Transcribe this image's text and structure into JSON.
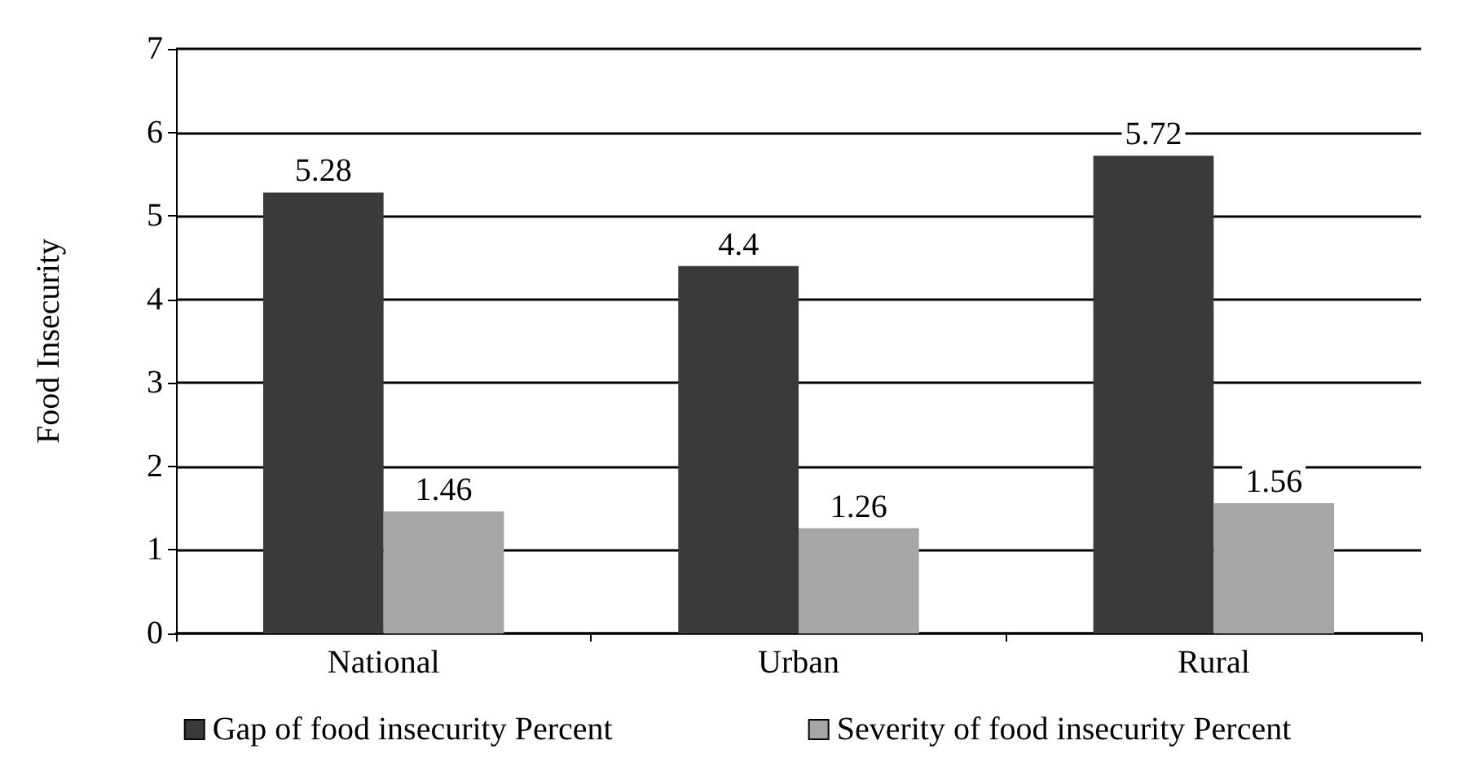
{
  "chart_data": {
    "type": "bar",
    "ylabel": "Food Insecurity",
    "categories": [
      "National",
      "Urban",
      "Rural"
    ],
    "series": [
      {
        "name": "Gap of food insecurity Percent",
        "color": "#3a3a3a",
        "values": [
          5.28,
          4.4,
          5.72
        ]
      },
      {
        "name": "Severity of food insecurity Percent",
        "color": "#a6a6a8",
        "values": [
          1.46,
          1.26,
          1.56
        ]
      }
    ],
    "ylim": [
      0,
      7
    ],
    "yticks": [
      0,
      1,
      2,
      3,
      4,
      5,
      6,
      7
    ],
    "grid": "y",
    "legend": "bottom",
    "data_labels": true
  }
}
